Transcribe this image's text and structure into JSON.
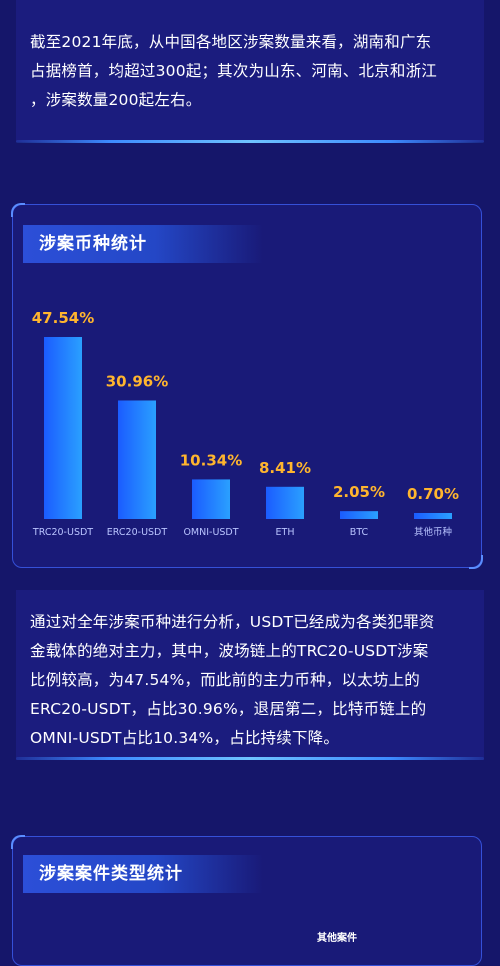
{
  "intro": {
    "lines": [
      "截至2021年底，从中国各地区涉案数量来看，湖南和广东",
      "占据榜首，均超过300起；其次为山东、河南、北京和浙江",
      "，涉案数量200起左右。"
    ]
  },
  "chart_section": {
    "title": "涉案币种统计"
  },
  "chart_data": {
    "type": "bar",
    "categories": [
      "TRC20-USDT",
      "ERC20-USDT",
      "OMNI-USDT",
      "ETH",
      "BTC",
      "其他币种"
    ],
    "values": [
      47.54,
      30.96,
      10.34,
      8.41,
      2.05,
      0.7
    ],
    "value_labels": [
      "47.54%",
      "30.96%",
      "10.34%",
      "8.41%",
      "2.05%",
      "0.70%"
    ],
    "title": "",
    "xlabel": "",
    "ylabel": "",
    "grid": false,
    "bar_color": "#1e7bff",
    "label_color": "#ffb52e"
  },
  "analysis": {
    "lines": [
      "通过对全年涉案币种进行分析，USDT已经成为各类犯罪资",
      "金载体的绝对主力，其中，波场链上的TRC20-USDT涉案",
      "比例较高，为47.54%，而此前的主力币种，以太坊上的",
      "ERC20-USDT，占比30.96%，退居第二，比特币链上的",
      "OMNI-USDT占比10.34%，占比持续下降。"
    ]
  },
  "case_section": {
    "title": "涉案案件类型统计",
    "partial_label": "其他案件"
  }
}
